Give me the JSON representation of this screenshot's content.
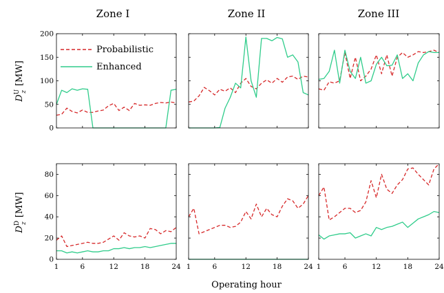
{
  "figure": {
    "columns": [
      "Zone I",
      "Zone II",
      "Zone III"
    ],
    "row_labels": [
      {
        "main": "D",
        "sup": "U",
        "sub": "z",
        "unit": "[MW]"
      },
      {
        "main": "D",
        "sup": "D",
        "sub": "z",
        "unit": "[MW]"
      }
    ],
    "xlabel": "Operating hour",
    "legend": [
      {
        "name": "Probabilistic",
        "color": "#d62728",
        "dash": true
      },
      {
        "name": "Enhanced",
        "color": "#2ecc8a",
        "dash": false
      }
    ]
  },
  "chart_data": [
    {
      "type": "line",
      "panel": "top-left",
      "title": "Zone I",
      "x": [
        1,
        2,
        3,
        4,
        5,
        6,
        7,
        8,
        9,
        10,
        11,
        12,
        13,
        14,
        15,
        16,
        17,
        18,
        19,
        20,
        21,
        22,
        23,
        24
      ],
      "xlim": [
        1,
        24
      ],
      "ylim": [
        0,
        200
      ],
      "xticks": [
        1,
        6,
        12,
        18,
        24
      ],
      "yticks": [
        0,
        50,
        100,
        150,
        200
      ],
      "series": [
        {
          "name": "Probabilistic",
          "values": [
            27,
            29,
            42,
            35,
            32,
            38,
            33,
            33,
            36,
            38,
            47,
            52,
            37,
            44,
            37,
            52,
            48,
            49,
            48,
            52,
            54,
            53,
            55,
            53
          ]
        },
        {
          "name": "Enhanced",
          "values": [
            50,
            80,
            75,
            83,
            80,
            83,
            82,
            0,
            0,
            0,
            0,
            0,
            0,
            0,
            0,
            0,
            0,
            0,
            0,
            0,
            0,
            0,
            80,
            82
          ]
        }
      ]
    },
    {
      "type": "line",
      "panel": "top-middle",
      "title": "Zone II",
      "x": [
        1,
        2,
        3,
        4,
        5,
        6,
        7,
        8,
        9,
        10,
        11,
        12,
        13,
        14,
        15,
        16,
        17,
        18,
        19,
        20,
        21,
        22,
        23,
        24
      ],
      "xlim": [
        1,
        24
      ],
      "ylim": [
        0,
        200
      ],
      "xticks": [
        1,
        6,
        12,
        18,
        24
      ],
      "yticks": [
        0,
        50,
        100,
        150,
        200
      ],
      "series": [
        {
          "name": "Probabilistic",
          "values": [
            55,
            57,
            68,
            86,
            79,
            70,
            82,
            78,
            85,
            75,
            95,
            105,
            88,
            83,
            95,
            102,
            95,
            105,
            97,
            108,
            110,
            103,
            110,
            108
          ]
        },
        {
          "name": "Enhanced",
          "values": [
            0,
            0,
            0,
            0,
            0,
            0,
            1,
            42,
            65,
            95,
            85,
            193,
            100,
            65,
            190,
            190,
            185,
            192,
            189,
            150,
            155,
            140,
            75,
            70
          ]
        }
      ]
    },
    {
      "type": "line",
      "panel": "top-right",
      "title": "Zone III",
      "x": [
        1,
        2,
        3,
        4,
        5,
        6,
        7,
        8,
        9,
        10,
        11,
        12,
        13,
        14,
        15,
        16,
        17,
        18,
        19,
        20,
        21,
        22,
        23,
        24
      ],
      "xlim": [
        1,
        24
      ],
      "ylim": [
        0,
        200
      ],
      "xticks": [
        1,
        6,
        12,
        18,
        24
      ],
      "yticks": [
        0,
        50,
        100,
        150,
        200
      ],
      "series": [
        {
          "name": "Probabilistic",
          "values": [
            83,
            80,
            98,
            95,
            100,
            160,
            105,
            150,
            100,
            110,
            125,
            155,
            115,
            155,
            110,
            150,
            160,
            150,
            155,
            162,
            160,
            162,
            165,
            160
          ]
        },
        {
          "name": "Enhanced",
          "values": [
            103,
            105,
            120,
            165,
            95,
            165,
            120,
            105,
            150,
            95,
            100,
            135,
            150,
            132,
            133,
            155,
            105,
            115,
            100,
            138,
            155,
            162,
            160,
            160
          ]
        }
      ]
    },
    {
      "type": "line",
      "panel": "bottom-left",
      "x": [
        1,
        2,
        3,
        4,
        5,
        6,
        7,
        8,
        9,
        10,
        11,
        12,
        13,
        14,
        15,
        16,
        17,
        18,
        19,
        20,
        21,
        22,
        23,
        24
      ],
      "xlim": [
        1,
        24
      ],
      "ylim": [
        0,
        90
      ],
      "xticks": [
        1,
        6,
        12,
        18,
        24
      ],
      "yticks": [
        0,
        20,
        40,
        60,
        80
      ],
      "series": [
        {
          "name": "Probabilistic",
          "values": [
            18,
            22,
            12,
            13,
            14,
            15,
            16,
            15,
            15,
            16,
            19,
            22,
            18,
            25,
            22,
            21,
            22,
            20,
            29,
            28,
            24,
            27,
            26,
            30
          ]
        },
        {
          "name": "Enhanced",
          "values": [
            8,
            8,
            6,
            7,
            6,
            7,
            8,
            7,
            7,
            8,
            8,
            10,
            10,
            11,
            10,
            11,
            11,
            12,
            11,
            12,
            13,
            14,
            15,
            15
          ]
        }
      ]
    },
    {
      "type": "line",
      "panel": "bottom-middle",
      "x": [
        1,
        2,
        3,
        4,
        5,
        6,
        7,
        8,
        9,
        10,
        11,
        12,
        13,
        14,
        15,
        16,
        17,
        18,
        19,
        20,
        21,
        22,
        23,
        24
      ],
      "xlim": [
        1,
        24
      ],
      "ylim": [
        0,
        90
      ],
      "xticks": [
        1,
        6,
        12,
        18,
        24
      ],
      "yticks": [
        0,
        20,
        40,
        60,
        80
      ],
      "series": [
        {
          "name": "Probabilistic",
          "values": [
            40,
            48,
            24,
            26,
            28,
            30,
            32,
            32,
            30,
            31,
            35,
            45,
            38,
            52,
            40,
            48,
            42,
            40,
            50,
            57,
            55,
            48,
            52,
            60
          ]
        },
        {
          "name": "Enhanced",
          "values": [
            0,
            0,
            0,
            0,
            0,
            0,
            0,
            0,
            0,
            0,
            0,
            0,
            0,
            0,
            0,
            0,
            0,
            0,
            0,
            0,
            0,
            0,
            0,
            0
          ]
        }
      ]
    },
    {
      "type": "line",
      "panel": "bottom-right",
      "x": [
        1,
        2,
        3,
        4,
        5,
        6,
        7,
        8,
        9,
        10,
        11,
        12,
        13,
        14,
        15,
        16,
        17,
        18,
        19,
        20,
        21,
        22,
        23,
        24
      ],
      "xlim": [
        1,
        24
      ],
      "ylim": [
        0,
        90
      ],
      "xticks": [
        1,
        6,
        12,
        18,
        24
      ],
      "yticks": [
        0,
        20,
        40,
        60,
        80
      ],
      "series": [
        {
          "name": "Probabilistic",
          "values": [
            60,
            68,
            37,
            40,
            44,
            48,
            48,
            44,
            46,
            54,
            74,
            58,
            80,
            66,
            62,
            70,
            75,
            85,
            86,
            80,
            75,
            70,
            85,
            90
          ]
        },
        {
          "name": "Enhanced",
          "values": [
            23,
            19,
            22,
            23,
            24,
            24,
            25,
            20,
            22,
            24,
            22,
            30,
            28,
            30,
            31,
            33,
            35,
            30,
            34,
            38,
            40,
            42,
            45,
            44
          ]
        }
      ]
    }
  ]
}
